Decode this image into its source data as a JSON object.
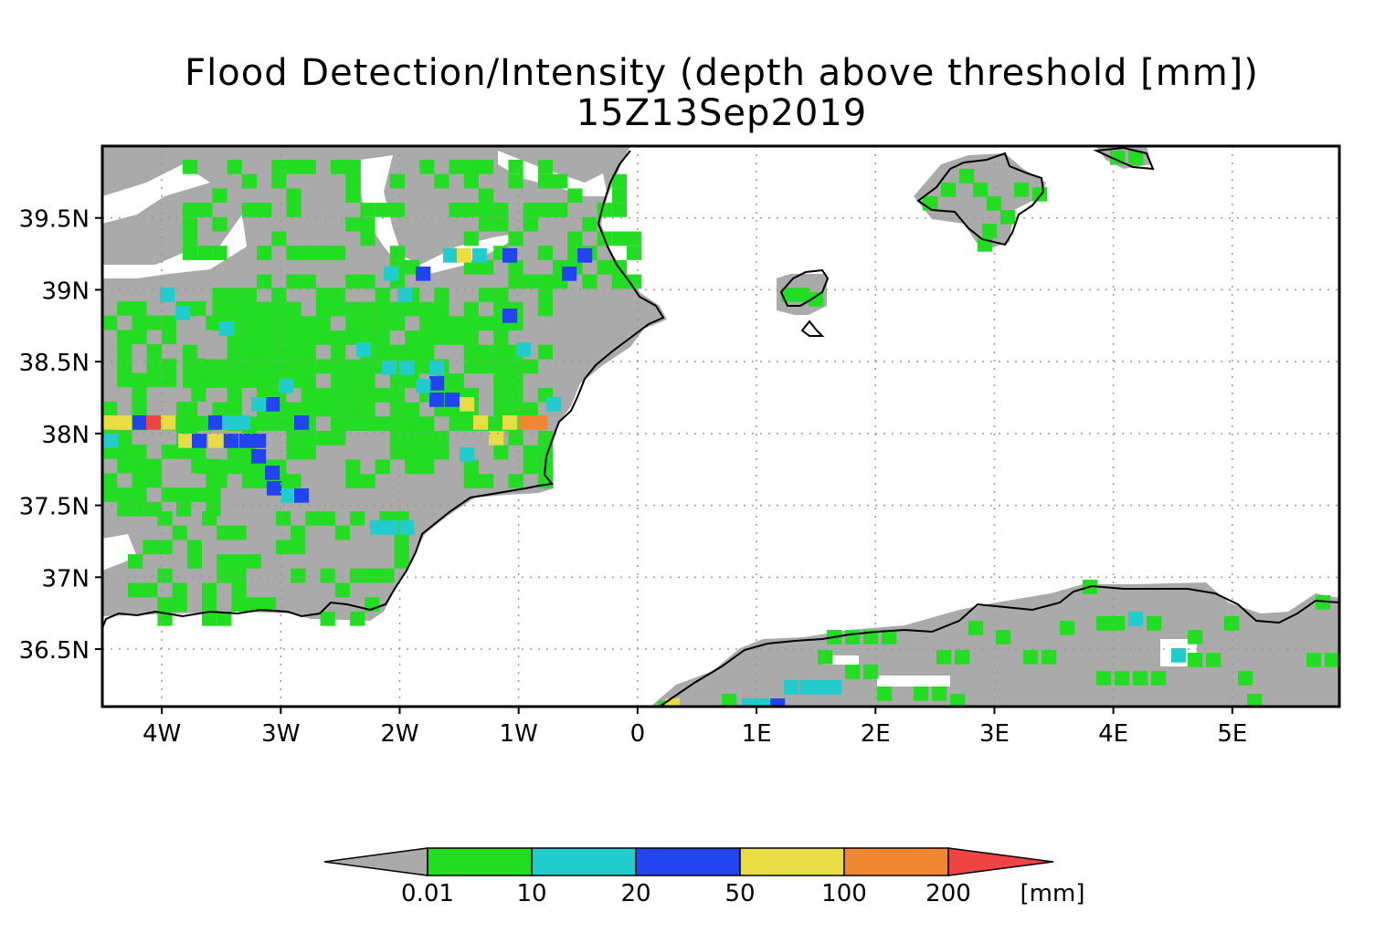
{
  "title": "Flood Detection/Intensity (depth above threshold [mm])",
  "subtitle": "15Z13Sep2019",
  "map": {
    "lon_range": [
      -4.5,
      5.9
    ],
    "lat_range": [
      36.1,
      40.0
    ],
    "lon_ticks": [
      {
        "value": -4,
        "label": "4W"
      },
      {
        "value": -3,
        "label": "3W"
      },
      {
        "value": -2,
        "label": "2W"
      },
      {
        "value": -1,
        "label": "1W"
      },
      {
        "value": 0,
        "label": "0"
      },
      {
        "value": 1,
        "label": "1E"
      },
      {
        "value": 2,
        "label": "2E"
      },
      {
        "value": 3,
        "label": "3E"
      },
      {
        "value": 4,
        "label": "4E"
      },
      {
        "value": 5,
        "label": "5E"
      }
    ],
    "lat_ticks": [
      {
        "value": 39.5,
        "label": "39.5N"
      },
      {
        "value": 39.0,
        "label": "39N"
      },
      {
        "value": 38.5,
        "label": "38.5N"
      },
      {
        "value": 38.0,
        "label": "38N"
      },
      {
        "value": 37.5,
        "label": "37.5N"
      },
      {
        "value": 37.0,
        "label": "37N"
      },
      {
        "value": 36.5,
        "label": "36.5N"
      }
    ],
    "grid": true,
    "land_color": "#aaaaaa",
    "background_color": "#ffffff"
  },
  "colorbar": {
    "unit": "[mm]",
    "below_color": "#aaaaaa",
    "above_color": "#ee4444",
    "bins": [
      {
        "color": "#22dd22",
        "label": "0.01"
      },
      {
        "color": "#22cccc",
        "label": "10"
      },
      {
        "color": "#2244ee",
        "label": "20"
      },
      {
        "color": "#e8dd44",
        "label": "50"
      },
      {
        "color": "#f08833",
        "label": "100"
      },
      {
        "color": "",
        "label": "200"
      }
    ]
  },
  "chart_data": {
    "type": "heatmap",
    "title": "Flood Detection/Intensity (depth above threshold [mm])",
    "subtitle": "15Z13Sep2019",
    "xlim": [
      -4.5,
      5.9
    ],
    "ylim": [
      36.1,
      40.0
    ],
    "levels": [
      0.01,
      10,
      20,
      50,
      100,
      200
    ],
    "units": "mm",
    "notable_cells": [
      {
        "lon": -4.25,
        "lat": 38.05,
        "class": "50-100"
      },
      {
        "lon": -4.1,
        "lat": 38.05,
        "class": "20-50"
      },
      {
        "lon": -4.0,
        "lat": 38.05,
        "class": ">200"
      },
      {
        "lon": -3.85,
        "lat": 38.05,
        "class": "50-100"
      },
      {
        "lon": -3.6,
        "lat": 38.05,
        "class": "20-50"
      },
      {
        "lon": -3.45,
        "lat": 38.05,
        "class": "10-20"
      },
      {
        "lon": -3.1,
        "lat": 37.95,
        "class": "20-50"
      },
      {
        "lon": -3.0,
        "lat": 37.65,
        "class": "20-50"
      },
      {
        "lon": -2.8,
        "lat": 37.6,
        "class": "20-50"
      },
      {
        "lon": -1.65,
        "lat": 38.2,
        "class": "20-50"
      },
      {
        "lon": -1.4,
        "lat": 38.2,
        "class": "50-100"
      },
      {
        "lon": -1.2,
        "lat": 38.05,
        "class": "50-100"
      },
      {
        "lon": -0.85,
        "lat": 38.05,
        "class": "100-200"
      },
      {
        "lon": -0.75,
        "lat": 38.05,
        "class": "100-200"
      },
      {
        "lon": -1.0,
        "lat": 39.2,
        "class": "20-50"
      },
      {
        "lon": -1.4,
        "lat": 39.2,
        "class": "50-100"
      },
      {
        "lon": -0.45,
        "lat": 39.2,
        "class": "20-50"
      },
      {
        "lon": -1.85,
        "lat": 39.1,
        "class": "20-50"
      },
      {
        "lon": 0.35,
        "lat": 36.1,
        "class": "50-100"
      },
      {
        "lon": 1.2,
        "lat": 36.1,
        "class": "20-50"
      },
      {
        "lon": 4.55,
        "lat": 36.45,
        "class": "10-20"
      }
    ]
  }
}
